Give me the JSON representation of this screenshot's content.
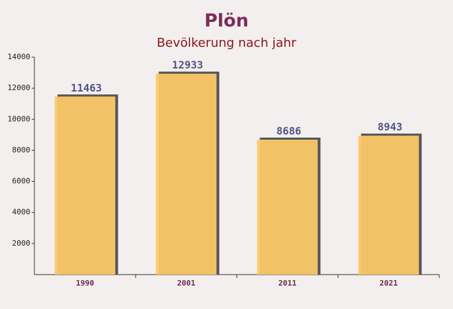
{
  "chart_data": {
    "type": "bar",
    "title": "Plön",
    "subtitle": "Bevölkerung nach jahr",
    "categories": [
      "1990",
      "2001",
      "2011",
      "2021"
    ],
    "values": [
      11463,
      12933,
      8686,
      8943
    ],
    "color": "#fbc868",
    "ylim": [
      0,
      14000
    ],
    "yticks": [
      2000,
      4000,
      6000,
      8000,
      10000,
      12000,
      14000
    ]
  }
}
